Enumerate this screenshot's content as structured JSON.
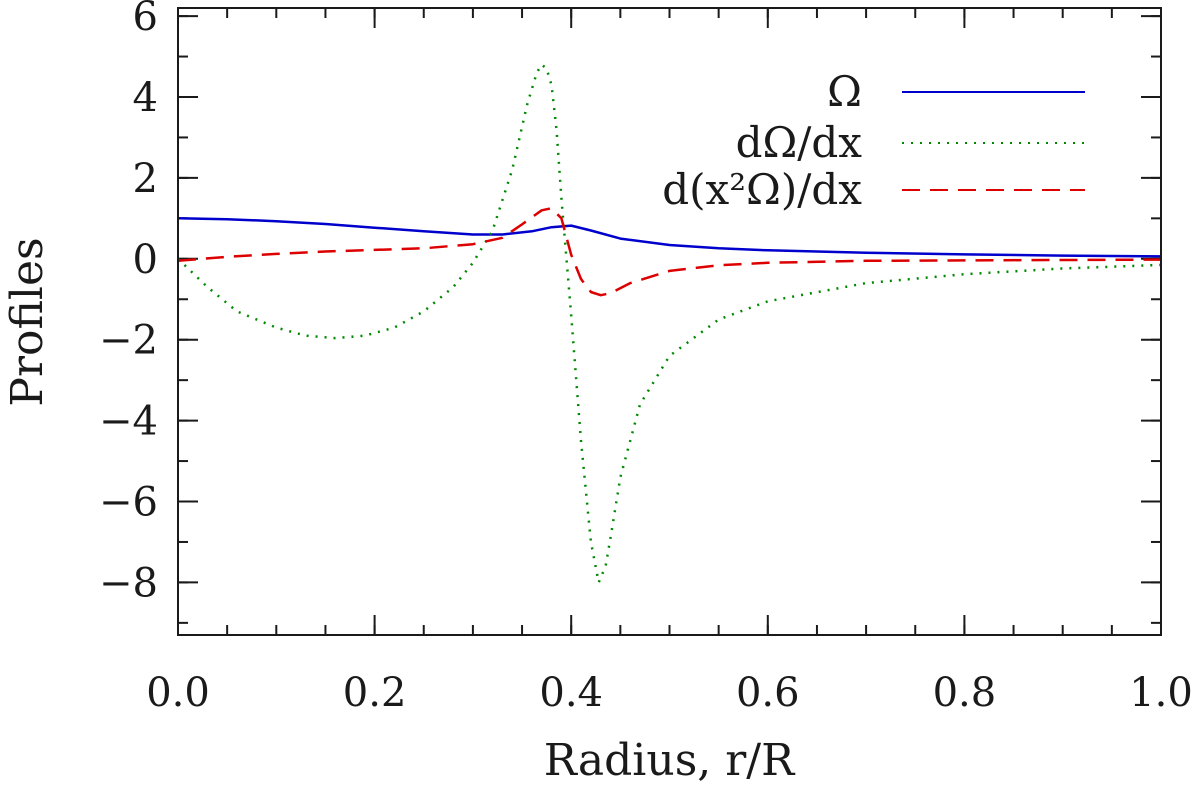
{
  "chart_data": {
    "type": "line",
    "title": "",
    "xlabel": "Radius, r/R",
    "ylabel": "Profiles",
    "xlim": [
      0.0,
      1.0
    ],
    "ylim": [
      -9.3,
      6.2
    ],
    "x_ticks": [
      0.0,
      0.2,
      0.4,
      0.6,
      0.8,
      1.0
    ],
    "x_tick_labels": [
      "0.0",
      "0.2",
      "0.4",
      "0.6",
      "0.8",
      "1.0"
    ],
    "x_minor_step": 0.05,
    "y_ticks": [
      -8,
      -6,
      -4,
      -2,
      0,
      2,
      4,
      6
    ],
    "y_tick_labels": [
      "−8",
      "−6",
      "−4",
      "−2",
      "0",
      "2",
      "4",
      "6"
    ],
    "y_minor_step": 1,
    "grid": false,
    "legend_position": "top-right",
    "series": [
      {
        "name": "Omega",
        "label": "Ω",
        "color": "#0000cc",
        "style": "solid",
        "x": [
          0.0,
          0.05,
          0.1,
          0.15,
          0.2,
          0.25,
          0.3,
          0.33,
          0.36,
          0.38,
          0.4,
          0.42,
          0.45,
          0.5,
          0.55,
          0.6,
          0.7,
          0.8,
          0.9,
          1.0
        ],
        "y": [
          1.0,
          0.98,
          0.93,
          0.86,
          0.77,
          0.68,
          0.6,
          0.6,
          0.68,
          0.78,
          0.82,
          0.7,
          0.5,
          0.34,
          0.26,
          0.21,
          0.15,
          0.11,
          0.08,
          0.06
        ]
      },
      {
        "name": "dOmega_dx",
        "label": "dΩ/dx",
        "color": "#008800",
        "style": "dotted",
        "x": [
          0.0,
          0.03,
          0.06,
          0.1,
          0.13,
          0.16,
          0.19,
          0.22,
          0.25,
          0.28,
          0.3,
          0.32,
          0.34,
          0.355,
          0.365,
          0.37,
          0.375,
          0.38,
          0.385,
          0.39,
          0.4,
          0.41,
          0.42,
          0.428,
          0.435,
          0.44,
          0.45,
          0.47,
          0.5,
          0.55,
          0.6,
          0.7,
          0.8,
          0.9,
          1.0
        ],
        "y": [
          0.0,
          -0.7,
          -1.3,
          -1.7,
          -1.9,
          -1.96,
          -1.9,
          -1.7,
          -1.3,
          -0.7,
          -0.1,
          0.7,
          2.2,
          3.8,
          4.6,
          4.8,
          4.7,
          4.3,
          3.2,
          1.5,
          -1.4,
          -4.5,
          -7.0,
          -8.0,
          -7.6,
          -6.9,
          -5.4,
          -3.6,
          -2.4,
          -1.5,
          -1.05,
          -0.6,
          -0.38,
          -0.24,
          -0.15
        ]
      },
      {
        "name": "d_x2Omega_dx",
        "label": "d(x²Ω)/dx",
        "color": "#dd0000",
        "style": "dashed",
        "x": [
          0.0,
          0.05,
          0.1,
          0.15,
          0.2,
          0.25,
          0.3,
          0.33,
          0.35,
          0.37,
          0.38,
          0.39,
          0.4,
          0.41,
          0.42,
          0.43,
          0.44,
          0.46,
          0.5,
          0.55,
          0.6,
          0.7,
          0.8,
          0.9,
          1.0
        ],
        "y": [
          -0.05,
          0.05,
          0.12,
          0.18,
          0.22,
          0.26,
          0.36,
          0.52,
          0.85,
          1.2,
          1.25,
          1.0,
          0.1,
          -0.5,
          -0.82,
          -0.9,
          -0.85,
          -0.6,
          -0.3,
          -0.16,
          -0.1,
          -0.05,
          -0.04,
          -0.03,
          -0.02
        ]
      }
    ]
  }
}
